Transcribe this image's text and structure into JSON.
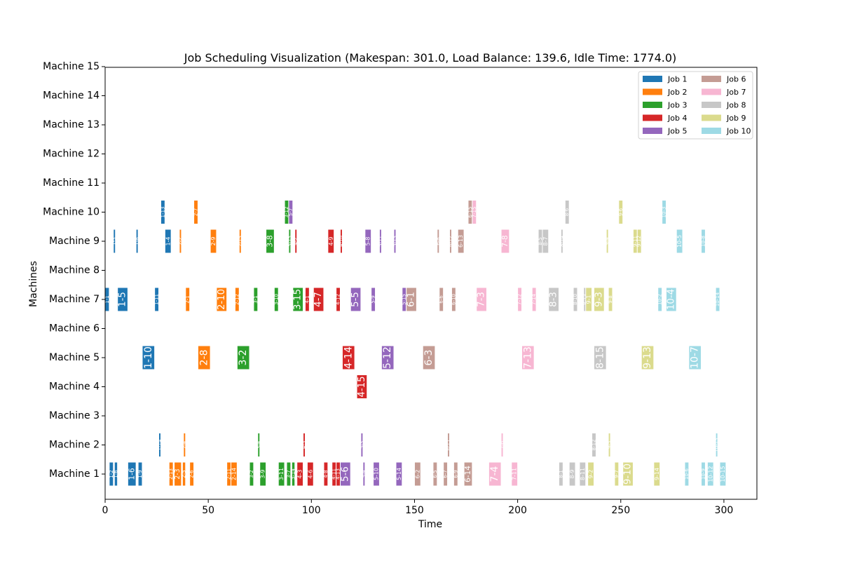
{
  "chart_data": {
    "type": "gantt",
    "title": "Job Scheduling Visualization (Makespan: 301.0, Load Balance: 139.6, Idle Time: 1774.0)",
    "xlabel": "Time",
    "ylabel": "Machines",
    "xlim": [
      0,
      316
    ],
    "xticks": [
      0,
      50,
      100,
      150,
      200,
      250,
      300
    ],
    "machines": [
      "Machine 1",
      "Machine 2",
      "Machine 3",
      "Machine 4",
      "Machine 5",
      "Machine 6",
      "Machine 7",
      "Machine 8",
      "Machine 9",
      "Machine 10",
      "Machine 11",
      "Machine 12",
      "Machine 13",
      "Machine 14",
      "Machine 15"
    ],
    "legend_position": "top-right",
    "legend": [
      {
        "name": "Job 1",
        "color": "#1f77b4"
      },
      {
        "name": "Job 2",
        "color": "#ff7f0e"
      },
      {
        "name": "Job 3",
        "color": "#2ca02c"
      },
      {
        "name": "Job 4",
        "color": "#d62728"
      },
      {
        "name": "Job 5",
        "color": "#9467bd"
      },
      {
        "name": "Job 6",
        "color": "#c49c94"
      },
      {
        "name": "Job 7",
        "color": "#f7b6d2"
      },
      {
        "name": "Job 8",
        "color": "#c7c7c7"
      },
      {
        "name": "Job 9",
        "color": "#dbdb8d"
      },
      {
        "name": "Job 10",
        "color": "#9edae5"
      }
    ],
    "tasks": [
      {
        "label": "1-2",
        "job": 1,
        "machine": 1,
        "start": 2,
        "end": 4
      },
      {
        "label": "1-6",
        "job": 1,
        "machine": 1,
        "start": 4.5,
        "end": 6
      },
      {
        "label": "1-6",
        "job": 1,
        "machine": 1,
        "start": 11,
        "end": 15
      },
      {
        "label": "1-9",
        "job": 1,
        "machine": 1,
        "start": 16,
        "end": 18
      },
      {
        "label": "2-13",
        "job": 2,
        "machine": 1,
        "start": 31,
        "end": 33
      },
      {
        "label": "2-3",
        "job": 2,
        "machine": 1,
        "start": 33.5,
        "end": 37
      },
      {
        "label": "2-5",
        "job": 2,
        "machine": 1,
        "start": 37.5,
        "end": 39
      },
      {
        "label": "2-6",
        "job": 2,
        "machine": 1,
        "start": 41,
        "end": 43
      },
      {
        "label": "2-11",
        "job": 2,
        "machine": 1,
        "start": 59,
        "end": 61
      },
      {
        "label": "2-14",
        "job": 2,
        "machine": 1,
        "start": 61,
        "end": 64
      },
      {
        "label": "3-2",
        "job": 3,
        "machine": 1,
        "start": 70,
        "end": 72
      },
      {
        "label": "3-9",
        "job": 3,
        "machine": 1,
        "start": 75,
        "end": 78
      },
      {
        "label": "3-11",
        "job": 3,
        "machine": 1,
        "start": 84,
        "end": 87
      },
      {
        "label": "3-7",
        "job": 3,
        "machine": 1,
        "start": 88,
        "end": 90
      },
      {
        "label": "3-14",
        "job": 3,
        "machine": 1,
        "start": 90.5,
        "end": 92
      },
      {
        "label": "4-3",
        "job": 4,
        "machine": 1,
        "start": 93,
        "end": 96
      },
      {
        "label": "4-6",
        "job": 4,
        "machine": 1,
        "start": 98,
        "end": 101
      },
      {
        "label": "4-8",
        "job": 4,
        "machine": 1,
        "start": 106,
        "end": 108
      },
      {
        "label": "4-11",
        "job": 4,
        "machine": 1,
        "start": 110,
        "end": 112
      },
      {
        "label": "4-13",
        "job": 4,
        "machine": 1,
        "start": 112,
        "end": 114
      },
      {
        "label": "5-6",
        "job": 5,
        "machine": 1,
        "start": 114,
        "end": 119
      },
      {
        "label": "5-4",
        "job": 5,
        "machine": 1,
        "start": 125,
        "end": 126
      },
      {
        "label": "5-10",
        "job": 5,
        "machine": 1,
        "start": 130,
        "end": 133
      },
      {
        "label": "5-14",
        "job": 5,
        "machine": 1,
        "start": 141,
        "end": 144
      },
      {
        "label": "6-2",
        "job": 6,
        "machine": 1,
        "start": 150,
        "end": 153
      },
      {
        "label": "6-5",
        "job": 6,
        "machine": 1,
        "start": 159,
        "end": 161
      },
      {
        "label": "6-7",
        "job": 6,
        "machine": 1,
        "start": 164,
        "end": 166
      },
      {
        "label": "6-9",
        "job": 6,
        "machine": 1,
        "start": 169,
        "end": 171
      },
      {
        "label": "6-14",
        "job": 6,
        "machine": 1,
        "start": 174,
        "end": 178
      },
      {
        "label": "7-4",
        "job": 7,
        "machine": 1,
        "start": 186,
        "end": 192
      },
      {
        "label": "7-11",
        "job": 7,
        "machine": 1,
        "start": 197,
        "end": 200
      },
      {
        "label": "8-1",
        "job": 8,
        "machine": 1,
        "start": 220,
        "end": 222
      },
      {
        "label": "8-9",
        "job": 8,
        "machine": 1,
        "start": 225,
        "end": 228
      },
      {
        "label": "8-11",
        "job": 8,
        "machine": 1,
        "start": 230,
        "end": 233
      },
      {
        "label": "9-2",
        "job": 9,
        "machine": 1,
        "start": 234,
        "end": 237
      },
      {
        "label": "9-7",
        "job": 9,
        "machine": 1,
        "start": 247,
        "end": 249
      },
      {
        "label": "9-10",
        "job": 9,
        "machine": 1,
        "start": 251,
        "end": 256
      },
      {
        "label": "9-14",
        "job": 9,
        "machine": 1,
        "start": 266,
        "end": 269
      },
      {
        "label": "10-6",
        "job": 10,
        "machine": 1,
        "start": 281,
        "end": 283
      },
      {
        "label": "10-9",
        "job": 10,
        "machine": 1,
        "start": 289,
        "end": 291
      },
      {
        "label": "10-12",
        "job": 10,
        "machine": 1,
        "start": 292,
        "end": 295
      },
      {
        "label": "10-15",
        "job": 10,
        "machine": 1,
        "start": 298,
        "end": 301
      },
      {
        "label": "1-14",
        "job": 1,
        "machine": 2,
        "start": 26,
        "end": 27
      },
      {
        "label": "2-4",
        "job": 2,
        "machine": 2,
        "start": 38,
        "end": 39
      },
      {
        "label": "3-4",
        "job": 3,
        "machine": 2,
        "start": 74,
        "end": 75
      },
      {
        "label": "4-5",
        "job": 4,
        "machine": 2,
        "start": 96,
        "end": 97
      },
      {
        "label": "5-3",
        "job": 5,
        "machine": 2,
        "start": 124,
        "end": 125
      },
      {
        "label": "6-11",
        "job": 6,
        "machine": 2,
        "start": 166,
        "end": 167
      },
      {
        "label": "7-6",
        "job": 7,
        "machine": 2,
        "start": 192,
        "end": 193
      },
      {
        "label": "8-12",
        "job": 8,
        "machine": 2,
        "start": 236,
        "end": 238
      },
      {
        "label": "9-5",
        "job": 9,
        "machine": 2,
        "start": 244,
        "end": 245
      },
      {
        "label": "10-13",
        "job": 10,
        "machine": 2,
        "start": 296,
        "end": 297
      },
      {
        "label": "4-15",
        "job": 4,
        "machine": 4,
        "start": 122,
        "end": 127
      },
      {
        "label": "1-10",
        "job": 1,
        "machine": 5,
        "start": 18,
        "end": 24
      },
      {
        "label": "2-8",
        "job": 2,
        "machine": 5,
        "start": 45,
        "end": 51
      },
      {
        "label": "3-2",
        "job": 3,
        "machine": 5,
        "start": 64,
        "end": 70
      },
      {
        "label": "4-14",
        "job": 4,
        "machine": 5,
        "start": 115,
        "end": 121
      },
      {
        "label": "5-12",
        "job": 5,
        "machine": 5,
        "start": 134,
        "end": 140
      },
      {
        "label": "6-3",
        "job": 6,
        "machine": 5,
        "start": 154,
        "end": 160
      },
      {
        "label": "7-13",
        "job": 7,
        "machine": 5,
        "start": 202,
        "end": 208
      },
      {
        "label": "8-15",
        "job": 8,
        "machine": 5,
        "start": 237,
        "end": 243
      },
      {
        "label": "9-13",
        "job": 9,
        "machine": 5,
        "start": 260,
        "end": 266
      },
      {
        "label": "10-7",
        "job": 10,
        "machine": 5,
        "start": 283,
        "end": 289
      },
      {
        "label": "1-1",
        "job": 1,
        "machine": 7,
        "start": 0,
        "end": 2
      },
      {
        "label": "1-5",
        "job": 1,
        "machine": 7,
        "start": 6,
        "end": 11
      },
      {
        "label": "1-11",
        "job": 1,
        "machine": 7,
        "start": 24,
        "end": 26
      },
      {
        "label": "2-1",
        "job": 2,
        "machine": 7,
        "start": 39,
        "end": 41
      },
      {
        "label": "2-10",
        "job": 2,
        "machine": 7,
        "start": 54,
        "end": 59
      },
      {
        "label": "2-12",
        "job": 2,
        "machine": 7,
        "start": 63,
        "end": 65
      },
      {
        "label": "3-1",
        "job": 3,
        "machine": 7,
        "start": 72,
        "end": 74
      },
      {
        "label": "3-10",
        "job": 3,
        "machine": 7,
        "start": 82,
        "end": 84
      },
      {
        "label": "3-15",
        "job": 3,
        "machine": 7,
        "start": 91,
        "end": 96
      },
      {
        "label": "4-1",
        "job": 4,
        "machine": 7,
        "start": 97,
        "end": 99
      },
      {
        "label": "4-7",
        "job": 4,
        "machine": 7,
        "start": 101,
        "end": 106
      },
      {
        "label": "4-12",
        "job": 4,
        "machine": 7,
        "start": 112,
        "end": 114
      },
      {
        "label": "5-5",
        "job": 5,
        "machine": 7,
        "start": 119,
        "end": 124
      },
      {
        "label": "5-9",
        "job": 5,
        "machine": 7,
        "start": 129,
        "end": 131
      },
      {
        "label": "5-15",
        "job": 5,
        "machine": 7,
        "start": 144,
        "end": 146
      },
      {
        "label": "6-1",
        "job": 6,
        "machine": 7,
        "start": 146,
        "end": 151
      },
      {
        "label": "6-6",
        "job": 6,
        "machine": 7,
        "start": 162,
        "end": 164
      },
      {
        "label": "6-10",
        "job": 6,
        "machine": 7,
        "start": 168,
        "end": 170
      },
      {
        "label": "7-3",
        "job": 7,
        "machine": 7,
        "start": 180,
        "end": 185
      },
      {
        "label": "7-12",
        "job": 7,
        "machine": 7,
        "start": 200,
        "end": 202
      },
      {
        "label": "7-14",
        "job": 7,
        "machine": 7,
        "start": 207,
        "end": 209
      },
      {
        "label": "8-3",
        "job": 8,
        "machine": 7,
        "start": 215,
        "end": 220
      },
      {
        "label": "8-10",
        "job": 8,
        "machine": 7,
        "start": 227,
        "end": 229
      },
      {
        "label": "8-13",
        "job": 8,
        "machine": 7,
        "start": 232,
        "end": 234
      },
      {
        "label": "9-1",
        "job": 9,
        "machine": 7,
        "start": 233,
        "end": 236
      },
      {
        "label": "9-3",
        "job": 9,
        "machine": 7,
        "start": 237,
        "end": 242
      },
      {
        "label": "9-8",
        "job": 9,
        "machine": 7,
        "start": 244,
        "end": 246
      },
      {
        "label": "10-2",
        "job": 10,
        "machine": 7,
        "start": 268,
        "end": 270
      },
      {
        "label": "10-4",
        "job": 10,
        "machine": 7,
        "start": 272,
        "end": 277
      },
      {
        "label": "10-14",
        "job": 10,
        "machine": 7,
        "start": 296,
        "end": 298
      },
      {
        "label": "1-3",
        "job": 1,
        "machine": 9,
        "start": 4,
        "end": 5
      },
      {
        "label": "1-8",
        "job": 1,
        "machine": 9,
        "start": 15,
        "end": 16
      },
      {
        "label": "1-4",
        "job": 1,
        "machine": 9,
        "start": 29,
        "end": 32
      },
      {
        "label": "2-2",
        "job": 2,
        "machine": 9,
        "start": 36,
        "end": 37
      },
      {
        "label": "2-9",
        "job": 2,
        "machine": 9,
        "start": 51,
        "end": 54
      },
      {
        "label": "2-15",
        "job": 2,
        "machine": 9,
        "start": 65,
        "end": 66
      },
      {
        "label": "3-8",
        "job": 3,
        "machine": 9,
        "start": 78,
        "end": 82
      },
      {
        "label": "3-13",
        "job": 3,
        "machine": 9,
        "start": 89,
        "end": 90
      },
      {
        "label": "4-2",
        "job": 4,
        "machine": 9,
        "start": 92,
        "end": 93
      },
      {
        "label": "4-9",
        "job": 4,
        "machine": 9,
        "start": 108,
        "end": 111
      },
      {
        "label": "4-10",
        "job": 4,
        "machine": 9,
        "start": 114,
        "end": 115
      },
      {
        "label": "5-8",
        "job": 5,
        "machine": 9,
        "start": 126,
        "end": 129
      },
      {
        "label": "5-11",
        "job": 5,
        "machine": 9,
        "start": 133,
        "end": 134
      },
      {
        "label": "5-13",
        "job": 5,
        "machine": 9,
        "start": 140,
        "end": 141
      },
      {
        "label": "6-8",
        "job": 6,
        "machine": 9,
        "start": 161,
        "end": 162
      },
      {
        "label": "6-12",
        "job": 6,
        "machine": 9,
        "start": 167,
        "end": 168
      },
      {
        "label": "6-13",
        "job": 6,
        "machine": 9,
        "start": 171,
        "end": 174
      },
      {
        "label": "7-8",
        "job": 7,
        "machine": 9,
        "start": 192,
        "end": 196
      },
      {
        "label": "8-5",
        "job": 8,
        "machine": 9,
        "start": 210,
        "end": 212
      },
      {
        "label": "8-7",
        "job": 8,
        "machine": 9,
        "start": 212,
        "end": 215
      },
      {
        "label": "8-14",
        "job": 8,
        "machine": 9,
        "start": 221,
        "end": 222
      },
      {
        "label": "9-4",
        "job": 9,
        "machine": 9,
        "start": 243,
        "end": 244
      },
      {
        "label": "9-11",
        "job": 9,
        "machine": 9,
        "start": 256,
        "end": 258
      },
      {
        "label": "9-12",
        "job": 9,
        "machine": 9,
        "start": 258,
        "end": 260
      },
      {
        "label": "10-5",
        "job": 10,
        "machine": 9,
        "start": 277,
        "end": 280
      },
      {
        "label": "10-8",
        "job": 10,
        "machine": 9,
        "start": 289,
        "end": 291
      },
      {
        "label": "1-13",
        "job": 1,
        "machine": 10,
        "start": 27,
        "end": 29
      },
      {
        "label": "2-7",
        "job": 2,
        "machine": 10,
        "start": 43,
        "end": 45
      },
      {
        "label": "3-12",
        "job": 3,
        "machine": 10,
        "start": 87,
        "end": 89
      },
      {
        "label": "5-7",
        "job": 5,
        "machine": 10,
        "start": 89,
        "end": 91
      },
      {
        "label": "6-15",
        "job": 6,
        "machine": 10,
        "start": 176,
        "end": 178
      },
      {
        "label": "7-15",
        "job": 7,
        "machine": 10,
        "start": 178,
        "end": 180
      },
      {
        "label": "8-6",
        "job": 8,
        "machine": 10,
        "start": 223,
        "end": 225
      },
      {
        "label": "9-6",
        "job": 9,
        "machine": 10,
        "start": 249,
        "end": 251
      },
      {
        "label": "10-3",
        "job": 10,
        "machine": 10,
        "start": 270,
        "end": 272
      }
    ]
  }
}
